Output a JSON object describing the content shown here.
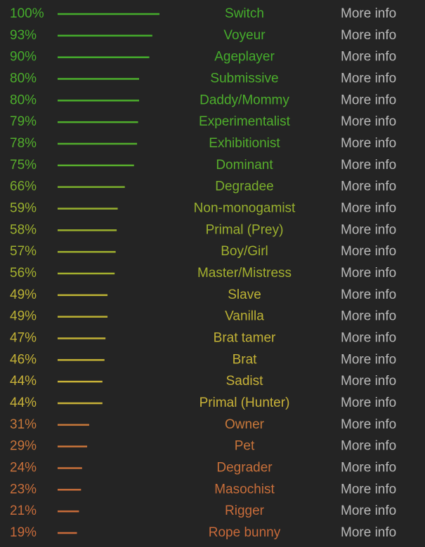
{
  "rows": [
    {
      "value": 100,
      "value_label": "100%",
      "name": "Switch",
      "link": "More info",
      "color": "#45ad2c"
    },
    {
      "value": 93,
      "value_label": "93%",
      "name": "Voyeur",
      "link": "More info",
      "color": "#45ad2c"
    },
    {
      "value": 90,
      "value_label": "90%",
      "name": "Ageplayer",
      "link": "More info",
      "color": "#45ad2c"
    },
    {
      "value": 80,
      "value_label": "80%",
      "name": "Submissive",
      "link": "More info",
      "color": "#4cae2c"
    },
    {
      "value": 80,
      "value_label": "80%",
      "name": "Daddy/Mommy",
      "link": "More info",
      "color": "#4cae2c"
    },
    {
      "value": 79,
      "value_label": "79%",
      "name": "Experimentalist",
      "link": "More info",
      "color": "#4fae2c"
    },
    {
      "value": 78,
      "value_label": "78%",
      "name": "Exhibitionist",
      "link": "More info",
      "color": "#52ae2c"
    },
    {
      "value": 75,
      "value_label": "75%",
      "name": "Dominant",
      "link": "More info",
      "color": "#58ae2c"
    },
    {
      "value": 66,
      "value_label": "66%",
      "name": "Degradee",
      "link": "More info",
      "color": "#7aae2c"
    },
    {
      "value": 59,
      "value_label": "59%",
      "name": "Non-monogamist",
      "link": "More info",
      "color": "#98b02e"
    },
    {
      "value": 58,
      "value_label": "58%",
      "name": "Primal (Prey)",
      "link": "More info",
      "color": "#9cb02e"
    },
    {
      "value": 57,
      "value_label": "57%",
      "name": "Boy/Girl",
      "link": "More info",
      "color": "#a0b02e"
    },
    {
      "value": 56,
      "value_label": "56%",
      "name": "Master/Mistress",
      "link": "More info",
      "color": "#a4b02e"
    },
    {
      "value": 49,
      "value_label": "49%",
      "name": "Slave",
      "link": "More info",
      "color": "#bcb234"
    },
    {
      "value": 49,
      "value_label": "49%",
      "name": "Vanilla",
      "link": "More info",
      "color": "#bcb234"
    },
    {
      "value": 47,
      "value_label": "47%",
      "name": "Brat tamer",
      "link": "More info",
      "color": "#c2b236"
    },
    {
      "value": 46,
      "value_label": "46%",
      "name": "Brat",
      "link": "More info",
      "color": "#c4b236"
    },
    {
      "value": 44,
      "value_label": "44%",
      "name": "Sadist",
      "link": "More info",
      "color": "#c8b238"
    },
    {
      "value": 44,
      "value_label": "44%",
      "name": "Primal (Hunter)",
      "link": "More info",
      "color": "#c8b238"
    },
    {
      "value": 31,
      "value_label": "31%",
      "name": "Owner",
      "link": "More info",
      "color": "#c8783a"
    },
    {
      "value": 29,
      "value_label": "29%",
      "name": "Pet",
      "link": "More info",
      "color": "#c8743a"
    },
    {
      "value": 24,
      "value_label": "24%",
      "name": "Degrader",
      "link": "More info",
      "color": "#c8703a"
    },
    {
      "value": 23,
      "value_label": "23%",
      "name": "Masochist",
      "link": "More info",
      "color": "#c86e3a"
    },
    {
      "value": 21,
      "value_label": "21%",
      "name": "Rigger",
      "link": "More info",
      "color": "#c86c3a"
    },
    {
      "value": 19,
      "value_label": "19%",
      "name": "Rope bunny",
      "link": "More info",
      "color": "#c86a3a"
    }
  ]
}
